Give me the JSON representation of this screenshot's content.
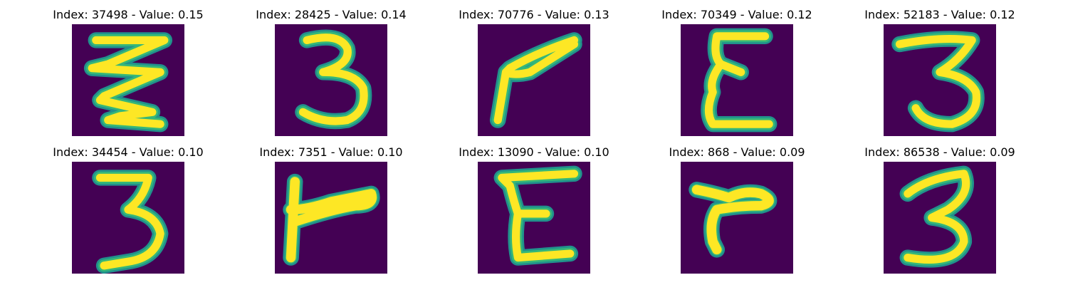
{
  "colors": {
    "background": "#440154",
    "stroke": "#fde725",
    "edge": "#21918c"
  },
  "panels": [
    {
      "title": "Index: 37498 - Value: 0.15",
      "glyph": "wavy-3"
    },
    {
      "title": "Index: 28425 - Value: 0.14",
      "glyph": "digit-3"
    },
    {
      "title": "Index: 70776 - Value: 0.13",
      "glyph": "digit-7-slanted"
    },
    {
      "title": "Index: 70349 - Value: 0.12",
      "glyph": "letter-e"
    },
    {
      "title": "Index: 52183 - Value: 0.12",
      "glyph": "digit-3"
    },
    {
      "title": "Index: 34454 - Value: 0.10",
      "glyph": "digit-3"
    },
    {
      "title": "Index: 7351 - Value: 0.10",
      "glyph": "letter-f-sideways"
    },
    {
      "title": "Index: 13090 - Value: 0.10",
      "glyph": "letter-e"
    },
    {
      "title": "Index: 868 - Value: 0.09",
      "glyph": "letter-r"
    },
    {
      "title": "Index: 86538 - Value: 0.09",
      "glyph": "digit-3"
    }
  ]
}
